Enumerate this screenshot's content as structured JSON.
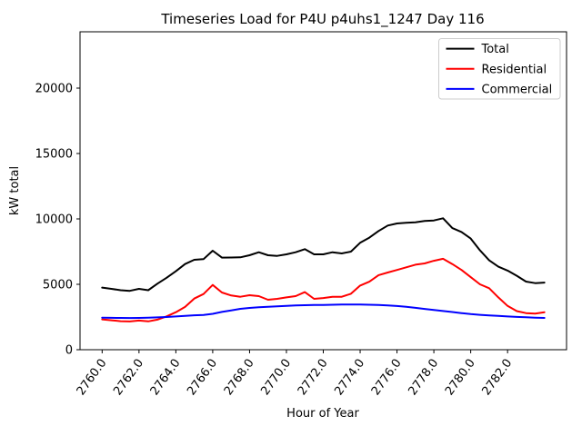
{
  "figure": {
    "background": "#ffffff"
  },
  "chart_data": {
    "type": "line",
    "title": "Timeseries Load for P4U p4uhs1_1247  Day 116",
    "xlabel": "Hour of Year",
    "ylabel": "kW total",
    "grid": false,
    "xlim": [
      2758.8,
      2785.2
    ],
    "ylim": [
      0,
      24305
    ],
    "xticks": {
      "values": [
        2760,
        2762,
        2764,
        2766,
        2768,
        2770,
        2772,
        2774,
        2776,
        2778,
        2780,
        2782
      ],
      "labels": [
        "2760.0",
        "2762.0",
        "2764.0",
        "2766.0",
        "2768.0",
        "2770.0",
        "2772.0",
        "2774.0",
        "2776.0",
        "2778.0",
        "2780.0",
        "2782.0"
      ]
    },
    "yticks": {
      "values": [
        0,
        5000,
        10000,
        15000,
        20000
      ],
      "labels": [
        "0",
        "5000",
        "10000",
        "15000",
        "20000"
      ]
    },
    "legend": {
      "position": "upper right",
      "border_color": "#cccccc"
    },
    "x": [
      2760.0,
      2760.5,
      2761.0,
      2761.5,
      2762.0,
      2762.5,
      2763.0,
      2763.5,
      2764.0,
      2764.5,
      2765.0,
      2765.5,
      2766.0,
      2766.5,
      2767.0,
      2767.5,
      2768.0,
      2768.5,
      2769.0,
      2769.5,
      2770.0,
      2770.5,
      2771.0,
      2771.5,
      2772.0,
      2772.5,
      2773.0,
      2773.5,
      2774.0,
      2774.5,
      2775.0,
      2775.5,
      2776.0,
      2776.5,
      2777.0,
      2777.5,
      2778.0,
      2778.5,
      2779.0,
      2779.5,
      2780.0,
      2780.5,
      2781.0,
      2781.5,
      2782.0,
      2782.5,
      2783.0,
      2783.5,
      2784.0
    ],
    "series": [
      {
        "name": "Total",
        "color": "#000000",
        "values": [
          4750,
          4650,
          4550,
          4500,
          4650,
          4550,
          5050,
          5500,
          6000,
          6550,
          6875,
          6920,
          7570,
          7040,
          7050,
          7060,
          7220,
          7450,
          7220,
          7175,
          7290,
          7450,
          7690,
          7290,
          7290,
          7450,
          7360,
          7500,
          8170,
          8570,
          9075,
          9490,
          9650,
          9700,
          9745,
          9840,
          9880,
          10050,
          9300,
          9000,
          8500,
          7600,
          6830,
          6350,
          6050,
          5650,
          5210,
          5090,
          5130
        ]
      },
      {
        "name": "Residential",
        "color": "#ff0000",
        "values": [
          2320,
          2250,
          2180,
          2160,
          2230,
          2170,
          2300,
          2550,
          2870,
          3270,
          3910,
          4260,
          4950,
          4375,
          4145,
          4050,
          4165,
          4100,
          3820,
          3890,
          4000,
          4100,
          4400,
          3890,
          3950,
          4050,
          4050,
          4280,
          4900,
          5200,
          5700,
          5900,
          6100,
          6300,
          6500,
          6600,
          6800,
          6950,
          6550,
          6100,
          5550,
          5000,
          4700,
          4000,
          3350,
          2950,
          2800,
          2760,
          2870
        ]
      },
      {
        "name": "Commercial",
        "color": "#0000ff",
        "values": [
          2450,
          2440,
          2430,
          2425,
          2430,
          2445,
          2470,
          2500,
          2540,
          2580,
          2630,
          2660,
          2740,
          2890,
          3000,
          3125,
          3195,
          3240,
          3285,
          3320,
          3355,
          3380,
          3400,
          3415,
          3425,
          3440,
          3450,
          3455,
          3450,
          3440,
          3420,
          3390,
          3340,
          3280,
          3200,
          3120,
          3040,
          2960,
          2880,
          2800,
          2720,
          2670,
          2620,
          2580,
          2540,
          2510,
          2480,
          2450,
          2430
        ]
      }
    ]
  }
}
